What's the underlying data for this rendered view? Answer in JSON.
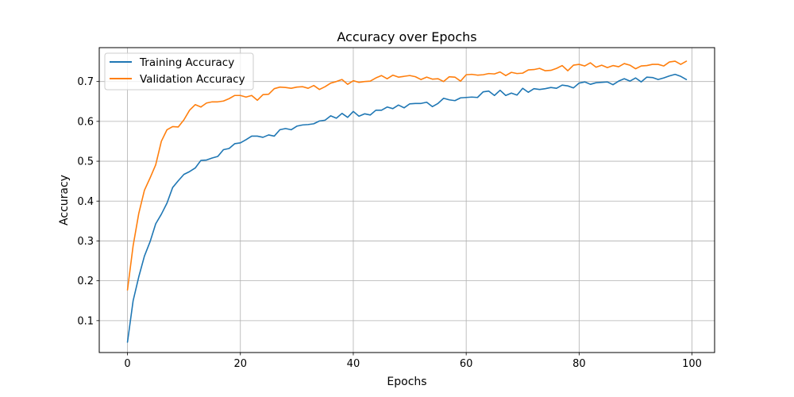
{
  "chart_data": {
    "type": "line",
    "title": "Accuracy over Epochs",
    "xlabel": "Epochs",
    "ylabel": "Accuracy",
    "xlim": [
      -5,
      104
    ],
    "ylim": [
      0.02,
      0.785
    ],
    "xticks": [
      0,
      20,
      40,
      60,
      80,
      100
    ],
    "yticks": [
      0.1,
      0.2,
      0.3,
      0.4,
      0.5,
      0.6,
      0.7
    ],
    "grid": true,
    "legend_position": "top-left",
    "x_start": 0,
    "series": [
      {
        "name": "Training Accuracy",
        "color": "#1f77b4",
        "values": [
          0.046,
          0.15,
          0.21,
          0.262,
          0.298,
          0.343,
          0.367,
          0.395,
          0.434,
          0.451,
          0.467,
          0.474,
          0.483,
          0.502,
          0.503,
          0.508,
          0.512,
          0.529,
          0.532,
          0.544,
          0.546,
          0.554,
          0.563,
          0.563,
          0.56,
          0.566,
          0.563,
          0.579,
          0.582,
          0.579,
          0.588,
          0.591,
          0.592,
          0.594,
          0.601,
          0.603,
          0.614,
          0.608,
          0.62,
          0.61,
          0.625,
          0.613,
          0.619,
          0.616,
          0.628,
          0.628,
          0.636,
          0.632,
          0.641,
          0.634,
          0.644,
          0.645,
          0.645,
          0.648,
          0.637,
          0.645,
          0.658,
          0.654,
          0.652,
          0.659,
          0.66,
          0.661,
          0.66,
          0.674,
          0.676,
          0.665,
          0.678,
          0.665,
          0.671,
          0.666,
          0.683,
          0.673,
          0.682,
          0.68,
          0.682,
          0.685,
          0.683,
          0.691,
          0.689,
          0.684,
          0.696,
          0.699,
          0.693,
          0.697,
          0.698,
          0.699,
          0.692,
          0.701,
          0.707,
          0.701,
          0.709,
          0.699,
          0.711,
          0.71,
          0.705,
          0.709,
          0.714,
          0.718,
          0.713,
          0.705
        ]
      },
      {
        "name": "Validation Accuracy",
        "color": "#ff7f0e",
        "values": [
          0.177,
          0.288,
          0.369,
          0.427,
          0.458,
          0.491,
          0.55,
          0.579,
          0.587,
          0.586,
          0.604,
          0.628,
          0.642,
          0.636,
          0.646,
          0.649,
          0.649,
          0.651,
          0.657,
          0.665,
          0.665,
          0.661,
          0.665,
          0.653,
          0.667,
          0.668,
          0.682,
          0.686,
          0.685,
          0.683,
          0.686,
          0.687,
          0.683,
          0.69,
          0.68,
          0.687,
          0.696,
          0.7,
          0.705,
          0.693,
          0.702,
          0.698,
          0.7,
          0.701,
          0.709,
          0.715,
          0.707,
          0.716,
          0.711,
          0.713,
          0.715,
          0.712,
          0.705,
          0.711,
          0.706,
          0.707,
          0.7,
          0.712,
          0.711,
          0.701,
          0.717,
          0.718,
          0.716,
          0.717,
          0.72,
          0.719,
          0.724,
          0.715,
          0.723,
          0.72,
          0.721,
          0.729,
          0.73,
          0.733,
          0.727,
          0.728,
          0.733,
          0.74,
          0.727,
          0.741,
          0.743,
          0.739,
          0.747,
          0.736,
          0.741,
          0.735,
          0.74,
          0.737,
          0.745,
          0.741,
          0.732,
          0.739,
          0.74,
          0.743,
          0.743,
          0.739,
          0.749,
          0.751,
          0.743,
          0.751
        ]
      }
    ]
  }
}
